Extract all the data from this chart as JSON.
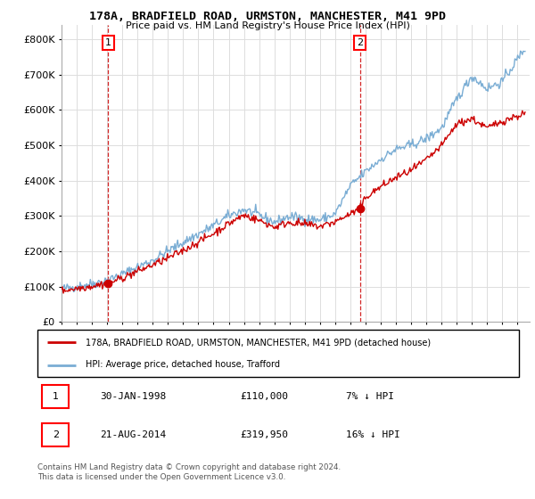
{
  "title1": "178A, BRADFIELD ROAD, URMSTON, MANCHESTER, M41 9PD",
  "title2": "Price paid vs. HM Land Registry's House Price Index (HPI)",
  "ylabel_ticks": [
    "£0",
    "£100K",
    "£200K",
    "£300K",
    "£400K",
    "£500K",
    "£600K",
    "£700K",
    "£800K"
  ],
  "ylim": [
    0,
    840000
  ],
  "xlim_start": 1995.0,
  "xlim_end": 2025.8,
  "sale1_x": 1998.08,
  "sale1_y": 110000,
  "sale1_label": "1",
  "sale2_x": 2014.64,
  "sale2_y": 319950,
  "sale2_label": "2",
  "legend_line1": "178A, BRADFIELD ROAD, URMSTON, MANCHESTER, M41 9PD (detached house)",
  "legend_line2": "HPI: Average price, detached house, Trafford",
  "table_row1": [
    "1",
    "30-JAN-1998",
    "£110,000",
    "7% ↓ HPI"
  ],
  "table_row2": [
    "2",
    "21-AUG-2014",
    "£319,950",
    "16% ↓ HPI"
  ],
  "footnote": "Contains HM Land Registry data © Crown copyright and database right 2024.\nThis data is licensed under the Open Government Licence v3.0.",
  "hpi_color": "#7aadd4",
  "sale_color": "#cc0000",
  "marker_color": "#cc0000",
  "dashed_color": "#cc0000",
  "grid_color": "#dddddd",
  "bg_color": "#ffffff"
}
